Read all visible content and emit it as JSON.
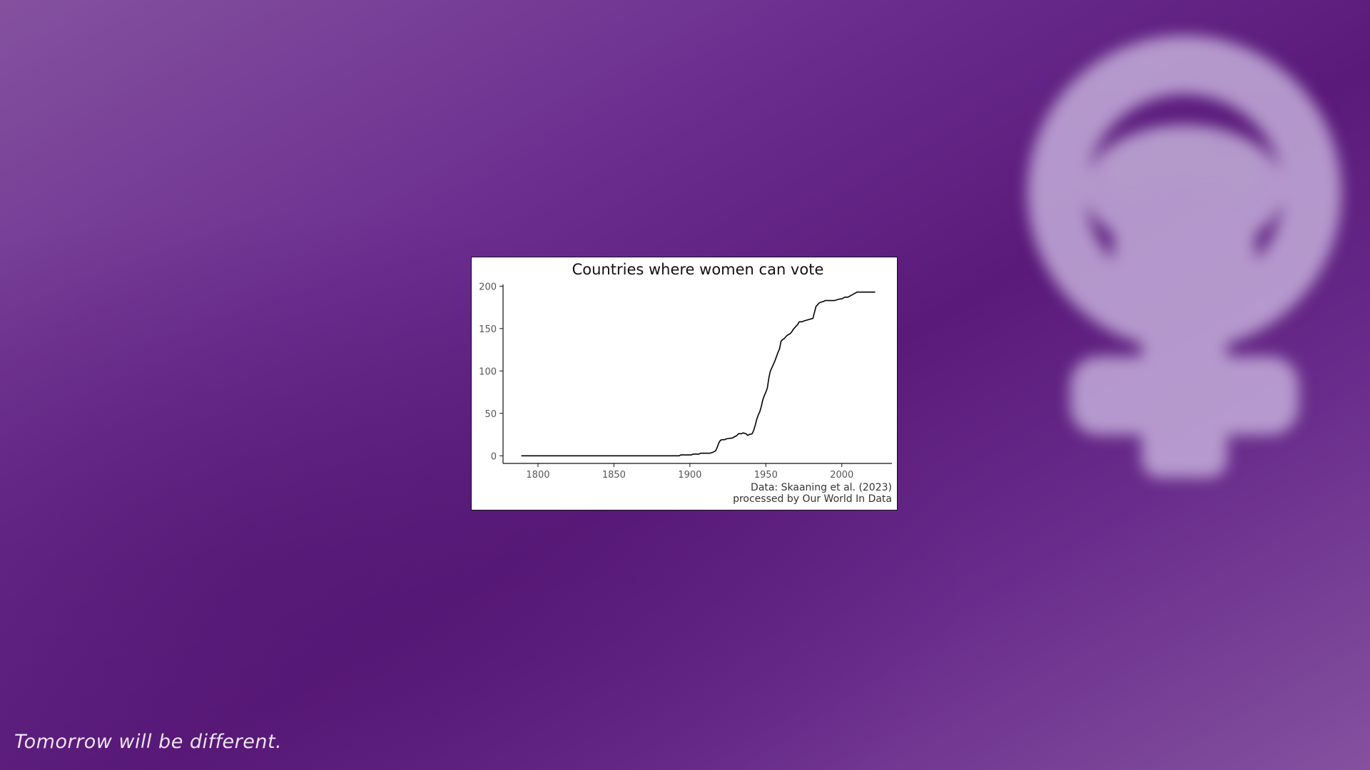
{
  "tagline": "Tomorrow will be different.",
  "wallpaper": {
    "symbol": "feminist-fist-venus-icon",
    "colors": {
      "background": "#5a1a7a",
      "symbol": "#c7b3dd"
    }
  },
  "chart_data": {
    "type": "line",
    "title": "Countries where women can vote",
    "xlabel": "",
    "ylabel": "",
    "xlim": [
      1777,
      2033
    ],
    "ylim": [
      -9,
      202
    ],
    "x_ticks": [
      1800,
      1850,
      1900,
      1950,
      2000
    ],
    "y_ticks": [
      0,
      50,
      100,
      150,
      200
    ],
    "source": [
      "Data: Skaaning et al. (2023)",
      "processed by Our World In Data"
    ],
    "grid": false,
    "line_color": "#000000",
    "series": [
      {
        "x": [
          1789,
          1893,
          1894,
          1901,
          1902,
          1906,
          1907,
          1913,
          1915,
          1917,
          1918,
          1919,
          1920,
          1921,
          1923,
          1924,
          1928,
          1929,
          1931,
          1932,
          1934,
          1935,
          1937,
          1938,
          1939,
          1941,
          1942,
          1943,
          1944,
          1945,
          1946,
          1947,
          1948,
          1949,
          1950,
          1951,
          1952,
          1953,
          1954,
          1955,
          1956,
          1957,
          1958,
          1959,
          1960,
          1961,
          1962,
          1963,
          1964,
          1965,
          1966,
          1967,
          1968,
          1969,
          1970,
          1971,
          1972,
          1974,
          1975,
          1977,
          1979,
          1981,
          1983,
          1985,
          1986,
          1988,
          1989,
          1990,
          1991,
          1993,
          1995,
          1997,
          1999,
          2000,
          2002,
          2004,
          2005,
          2006,
          2007,
          2008,
          2009,
          2010,
          2012,
          2014,
          2016,
          2018,
          2020,
          2022
        ],
        "y": [
          0,
          0,
          1,
          1,
          2,
          2,
          3,
          3,
          4,
          6,
          10,
          15,
          18,
          19,
          19,
          20,
          21,
          22,
          24,
          26,
          26,
          27,
          26,
          24,
          25,
          26,
          30,
          36,
          43,
          48,
          52,
          58,
          66,
          71,
          75,
          80,
          92,
          100,
          104,
          108,
          112,
          117,
          122,
          126,
          135,
          137,
          138,
          140,
          142,
          143,
          144,
          146,
          149,
          151,
          153,
          155,
          158,
          158,
          159,
          160,
          161,
          162,
          176,
          180,
          181,
          182,
          183,
          183,
          183,
          183,
          183,
          184,
          185,
          185,
          187,
          187,
          188,
          189,
          190,
          191,
          192,
          193,
          193,
          193,
          193,
          193,
          193,
          193
        ]
      }
    ]
  }
}
